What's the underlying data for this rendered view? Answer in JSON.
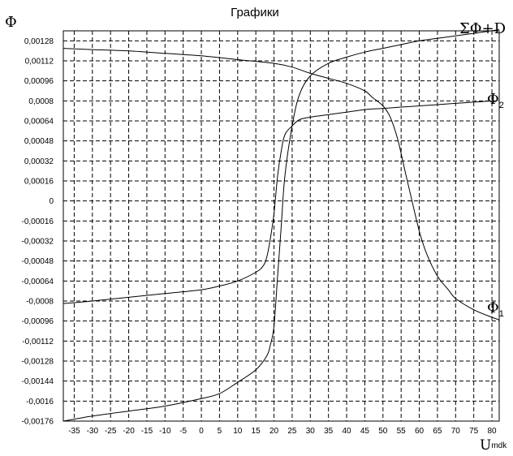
{
  "chart_data": {
    "type": "line",
    "title": "Графики",
    "ylabel": "Φ",
    "xlabel": {
      "main": "U",
      "sub": "mdk"
    },
    "xlim": [
      -38,
      82
    ],
    "ylim": [
      -0.00176,
      0.00136
    ],
    "grid": true,
    "x_ticks": [
      "-35",
      "-30",
      "-25",
      "-20",
      "-15",
      "-10",
      "-5",
      "0",
      "5",
      "10",
      "15",
      "20",
      "25",
      "30",
      "35",
      "40",
      "45",
      "50",
      "55",
      "60",
      "65",
      "70",
      "75",
      "80"
    ],
    "y_ticks": [
      "0,00128",
      "0,00112",
      "0,00096",
      "0,0008",
      "0,00064",
      "0,00048",
      "0,00032",
      "0,00016",
      "0",
      "-0,00016",
      "-0,00032",
      "-0,00048",
      "-0,00064",
      "-0,0008",
      "-0,00096",
      "-0,00112",
      "-0,00128",
      "-0,00144",
      "-0,0016",
      "-0,00176"
    ],
    "series": [
      {
        "label_main": "ΣΦ+D",
        "label_sub": "",
        "x": [
          -38,
          -30,
          -20,
          -10,
          0,
          5,
          10,
          15,
          18,
          19,
          20,
          21,
          22,
          23,
          25,
          27,
          30,
          35,
          40,
          45,
          50,
          55,
          60,
          65,
          70,
          75,
          82
        ],
        "y": [
          -0.00176,
          -0.00172,
          -0.00168,
          -0.00164,
          -0.00158,
          -0.00154,
          -0.00145,
          -0.00135,
          -0.00124,
          -0.00115,
          -0.001,
          -0.0006,
          -0.0002,
          0.0002,
          0.0006,
          0.00085,
          0.001,
          0.0011,
          0.00115,
          0.00119,
          0.00122,
          0.00125,
          0.00128,
          0.0013,
          0.00132,
          0.00134,
          0.00137
        ]
      },
      {
        "label_main": "Φ",
        "label_sub": "2",
        "x": [
          -38,
          -30,
          -20,
          -10,
          0,
          5,
          10,
          15,
          17,
          18,
          19,
          20,
          21,
          22,
          23,
          25,
          27,
          30,
          35,
          40,
          45,
          50,
          55,
          60,
          65,
          70,
          75,
          80
        ],
        "y": [
          -0.00082,
          -0.0008,
          -0.00077,
          -0.00074,
          -0.00071,
          -0.00068,
          -0.00064,
          -0.00057,
          -0.00052,
          -0.00045,
          -0.0003,
          -0.0001,
          0.0002,
          0.0004,
          0.00053,
          0.0006,
          0.00065,
          0.00067,
          0.00069,
          0.00071,
          0.00073,
          0.00074,
          0.00075,
          0.00076,
          0.00077,
          0.00078,
          0.00079,
          0.0008
        ]
      },
      {
        "label_main": "Φ",
        "label_sub": "1",
        "x": [
          -38,
          -30,
          -20,
          -10,
          0,
          10,
          20,
          25,
          30,
          35,
          40,
          45,
          47,
          50,
          52,
          54,
          56,
          58,
          60,
          62,
          65,
          68,
          70,
          75,
          80,
          82
        ],
        "y": [
          0.00122,
          0.00121,
          0.0012,
          0.00118,
          0.00116,
          0.00113,
          0.0011,
          0.00107,
          0.00102,
          0.00098,
          0.00094,
          0.00088,
          0.00083,
          0.00076,
          0.00067,
          0.0005,
          0.00025,
          0.0,
          -0.00024,
          -0.00042,
          -0.0006,
          -0.00071,
          -0.00078,
          -0.00087,
          -0.00093,
          -0.00095
        ]
      }
    ]
  }
}
